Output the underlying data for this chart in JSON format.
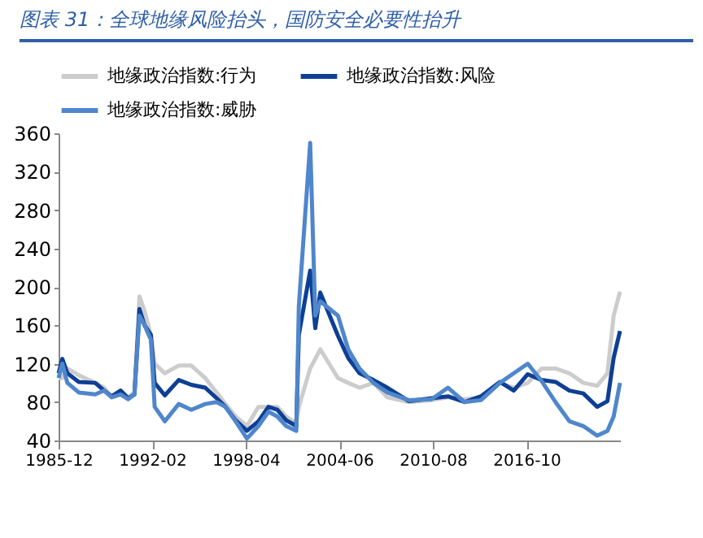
{
  "chart_data": {
    "type": "line",
    "title": "图表 31：全球地缘风险抬头，国防安全必要性抬升",
    "x": [
      "1985-12",
      "1986-03",
      "1986-07",
      "1987-04",
      "1988-05",
      "1988-12",
      "1989-06",
      "1990-01",
      "1990-07",
      "1990-12",
      "1991-04",
      "1991-08",
      "1992-01",
      "1992-04",
      "1992-12",
      "1993-11",
      "1994-09",
      "1995-08",
      "1996-05",
      "1996-12",
      "1997-08",
      "1998-05",
      "1999-02",
      "1999-10",
      "2000-05",
      "2000-12",
      "2001-08",
      "2001-10",
      "2002-07",
      "2002-11",
      "2003-03",
      "2004-05",
      "2005-01",
      "2005-10",
      "2006-09",
      "2007-08",
      "2009-01",
      "2010-07",
      "2011-08",
      "2012-09",
      "2013-10",
      "2015-01",
      "2015-12",
      "2016-11",
      "2017-10",
      "2018-09",
      "2019-08",
      "2020-07",
      "2021-06",
      "2022-02",
      "2022-07",
      "2022-12"
    ],
    "series": [
      {
        "name": "地缘政治指数:行为",
        "color": "#cccccc",
        "values": [
          105,
          105,
          115,
          108,
          100,
          95,
          85,
          92,
          85,
          90,
          190,
          175,
          150,
          120,
          110,
          118,
          118,
          105,
          90,
          78,
          65,
          55,
          75,
          75,
          75,
          65,
          58,
          75,
          115,
          125,
          135,
          105,
          100,
          95,
          100,
          85,
          80,
          82,
          85,
          83,
          85,
          100,
          95,
          100,
          115,
          115,
          110,
          100,
          97,
          110,
          170,
          195
        ]
      },
      {
        "name": "地缘政治指数:风险",
        "color": "#0d3f94",
        "values": [
          110,
          125,
          110,
          101,
          100,
          92,
          86,
          92,
          84,
          88,
          177,
          160,
          150,
          100,
          87,
          103,
          98,
          95,
          84,
          75,
          61,
          50,
          60,
          75,
          72,
          61,
          55,
          150,
          217,
          157,
          194,
          149,
          126,
          110,
          103,
          95,
          81,
          84,
          86,
          80,
          86,
          101,
          92,
          109,
          103,
          101,
          92,
          89,
          75,
          81,
          126,
          154
        ]
      },
      {
        "name": "地缘政治指数:威胁",
        "color": "#4f86cc",
        "values": [
          105,
          120,
          100,
          90,
          88,
          92,
          85,
          88,
          83,
          88,
          170,
          160,
          145,
          75,
          60,
          78,
          72,
          78,
          80,
          75,
          60,
          42,
          55,
          70,
          65,
          55,
          50,
          180,
          350,
          170,
          185,
          170,
          135,
          115,
          100,
          90,
          82,
          83,
          95,
          80,
          82,
          100,
          110,
          120,
          102,
          80,
          60,
          55,
          45,
          50,
          65,
          100
        ]
      }
    ],
    "ylim": [
      40,
      360
    ],
    "yticks": [
      40,
      80,
      120,
      160,
      200,
      240,
      280,
      320,
      360
    ],
    "xlim": [
      "1985-12",
      "2022-12"
    ],
    "xticks": [
      "1985-12",
      "1992-02",
      "1998-04",
      "2004-06",
      "2010-08",
      "2016-10"
    ],
    "grid": false,
    "legend": "top",
    "marker": "none",
    "line_style": "solid"
  }
}
